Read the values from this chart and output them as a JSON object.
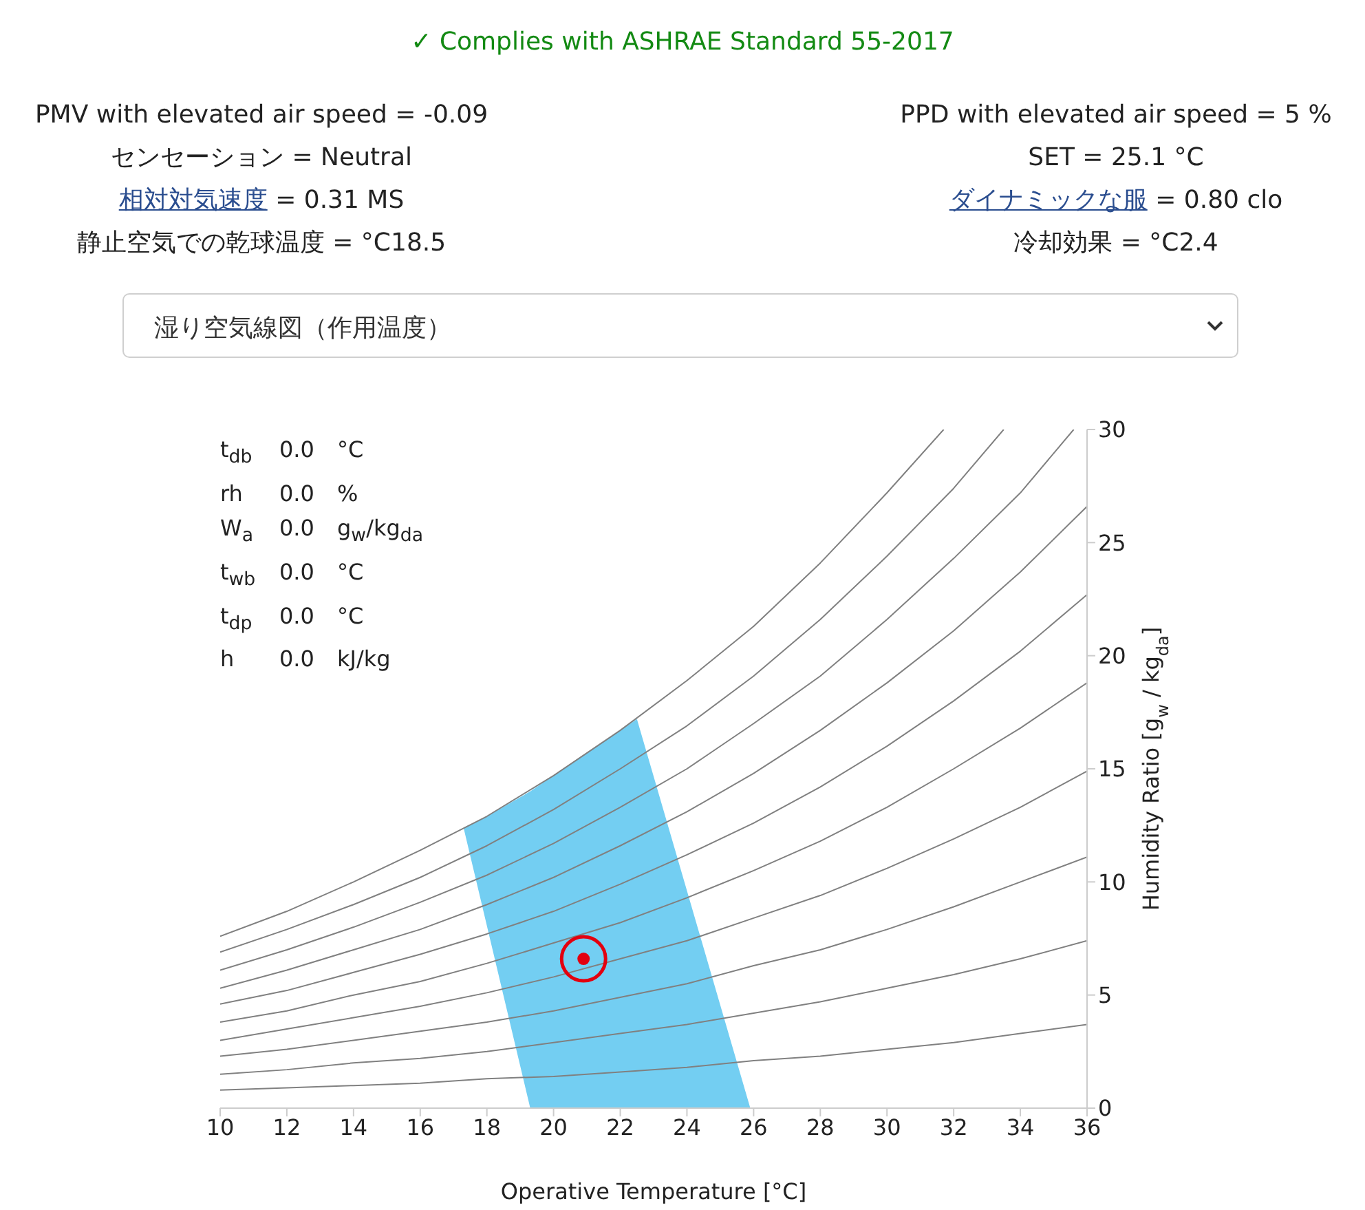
{
  "chart_data": {
    "type": "line",
    "title": "✓ Complies with ASHRAE Standard 55-2017",
    "subtitle": "湿り空気線図（作用温度）",
    "xlabel": "Operative Temperature [°C]",
    "ylabel": "Humidity Ratio [g$_{w}$ / kg$_{da}$]",
    "annotations": [
      "PMV with elevated air speed = -0.09",
      "センセーション = Neutral",
      "相対対気速度 = 0.31 MS",
      "静止空気での乾球温度 = °C18.5",
      "PPD with elevated air speed = 5 %",
      "SET = 25.1 °C",
      "ダイナミックな服 = 0.80 clo",
      "冷却効果 = °C2.4",
      "t$_{db}$ 0.0 °C",
      "rh 0.0 %",
      "W$_{a}$ 0.0 g$_{w}$/kg$_{da}$",
      "t$_{wb}$ 0.0 °C",
      "t$_{dp}$ 0.0 °C",
      "h 0.0 kJ/kg"
    ],
    "x": [
      10,
      12,
      14,
      16,
      18,
      20,
      22,
      24,
      26,
      28,
      30,
      32,
      34,
      36
    ],
    "xlim": [
      10,
      36
    ],
    "xticks": [
      10,
      12,
      14,
      16,
      18,
      20,
      22,
      24,
      26,
      28,
      30,
      32,
      34,
      36
    ],
    "ylim": [
      0,
      30
    ],
    "yticks": [
      0,
      5,
      10,
      15,
      20,
      25,
      30
    ],
    "marker": "none",
    "series": [
      {
        "type": "area",
        "color": "#73cef2",
        "x": [
          19.3,
          17.3,
          18,
          19.3,
          20,
          21,
          22,
          22.5,
          25.9
        ],
        "values": [
          0,
          12.4,
          12.9,
          14.0,
          14.7,
          15.7,
          16.7,
          17.2,
          0
        ]
      },
      {
        "color": "#808080",
        "values": [
          0.8,
          0.9,
          1.0,
          1.1,
          1.3,
          1.4,
          1.6,
          1.8,
          2.1,
          2.3,
          2.6,
          2.9,
          3.3,
          3.7
        ]
      },
      {
        "color": "#808080",
        "values": [
          1.5,
          1.7,
          2.0,
          2.2,
          2.5,
          2.9,
          3.3,
          3.7,
          4.2,
          4.7,
          5.3,
          5.9,
          6.6,
          7.4
        ]
      },
      {
        "color": "#808080",
        "values": [
          2.3,
          2.6,
          3.0,
          3.4,
          3.8,
          4.3,
          4.9,
          5.5,
          6.3,
          7.0,
          7.9,
          8.9,
          10.0,
          11.1
        ]
      },
      {
        "color": "#808080",
        "values": [
          3.0,
          3.5,
          4.0,
          4.5,
          5.1,
          5.8,
          6.6,
          7.4,
          8.4,
          9.4,
          10.6,
          11.9,
          13.3,
          14.9
        ]
      },
      {
        "color": "#808080",
        "values": [
          3.8,
          4.3,
          5.0,
          5.6,
          6.4,
          7.3,
          8.2,
          9.3,
          10.5,
          11.8,
          13.3,
          15.0,
          16.8,
          18.8
        ]
      },
      {
        "color": "#808080",
        "values": [
          4.6,
          5.2,
          6.0,
          6.8,
          7.7,
          8.7,
          9.9,
          11.2,
          12.6,
          14.2,
          16.0,
          18.0,
          20.2,
          22.7
        ]
      },
      {
        "color": "#808080",
        "values": [
          5.3,
          6.1,
          7.0,
          7.9,
          9.0,
          10.2,
          11.6,
          13.1,
          14.8,
          16.7,
          18.8,
          21.1,
          23.7,
          26.6
        ]
      },
      {
        "color": "#808080",
        "x": [
          10,
          12,
          14,
          16,
          18,
          20,
          22,
          24,
          26,
          28,
          30,
          32,
          34,
          35.6
        ],
        "values": [
          6.1,
          7.0,
          8.0,
          9.1,
          10.3,
          11.7,
          13.3,
          15.0,
          17.0,
          19.1,
          21.6,
          24.3,
          27.2,
          30
        ]
      },
      {
        "color": "#808080",
        "x": [
          10,
          12,
          14,
          16,
          18,
          20,
          22,
          24,
          26,
          28,
          30,
          32,
          33.5
        ],
        "values": [
          6.9,
          7.9,
          9.0,
          10.2,
          11.6,
          13.2,
          15.0,
          16.9,
          19.1,
          21.6,
          24.4,
          27.4,
          30
        ]
      },
      {
        "color": "#808080",
        "x": [
          10,
          12,
          14,
          16,
          18,
          20,
          22,
          24,
          26,
          28,
          30,
          31.7
        ],
        "values": [
          7.6,
          8.7,
          10.0,
          11.4,
          12.9,
          14.7,
          16.7,
          18.9,
          21.3,
          24.1,
          27.2,
          30
        ]
      },
      {
        "type": "scatter",
        "color": "#e3000f",
        "marker": "circle",
        "x": [
          20.9
        ],
        "values": [
          6.6
        ]
      }
    ]
  }
}
